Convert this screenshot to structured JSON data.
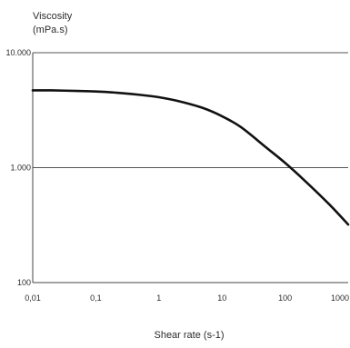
{
  "chart_data": {
    "type": "line",
    "title": "",
    "ylabel_lines": [
      "Viscosity",
      "(mPa.s)"
    ],
    "xlabel": "Shear rate (s-1)",
    "x_scale": "log",
    "y_scale": "log",
    "xlim": [
      0.01,
      1000
    ],
    "ylim": [
      100,
      10000
    ],
    "x_ticks": [
      {
        "value": 0.01,
        "label": "0,01"
      },
      {
        "value": 0.1,
        "label": "0,1"
      },
      {
        "value": 1,
        "label": "1"
      },
      {
        "value": 10,
        "label": "10"
      },
      {
        "value": 100,
        "label": "100"
      },
      {
        "value": 1000,
        "label": "1000"
      }
    ],
    "y_ticks": [
      {
        "value": 100,
        "label": "100"
      },
      {
        "value": 1000,
        "label": "1.000"
      },
      {
        "value": 10000,
        "label": "10.000"
      }
    ],
    "grid": {
      "horizontal_at": [
        1000,
        10000
      ],
      "vertical": false
    },
    "series": [
      {
        "x": [
          0.01,
          0.02,
          0.05,
          0.1,
          0.2,
          0.5,
          1,
          2,
          5,
          10,
          20,
          50,
          100,
          200,
          500,
          1000
        ],
        "y": [
          4700,
          4700,
          4650,
          4600,
          4500,
          4300,
          4100,
          3800,
          3300,
          2800,
          2250,
          1500,
          1100,
          780,
          480,
          320
        ]
      }
    ],
    "colors": {
      "line": "#111111",
      "grid": "#555555",
      "axis": "#444444"
    }
  }
}
